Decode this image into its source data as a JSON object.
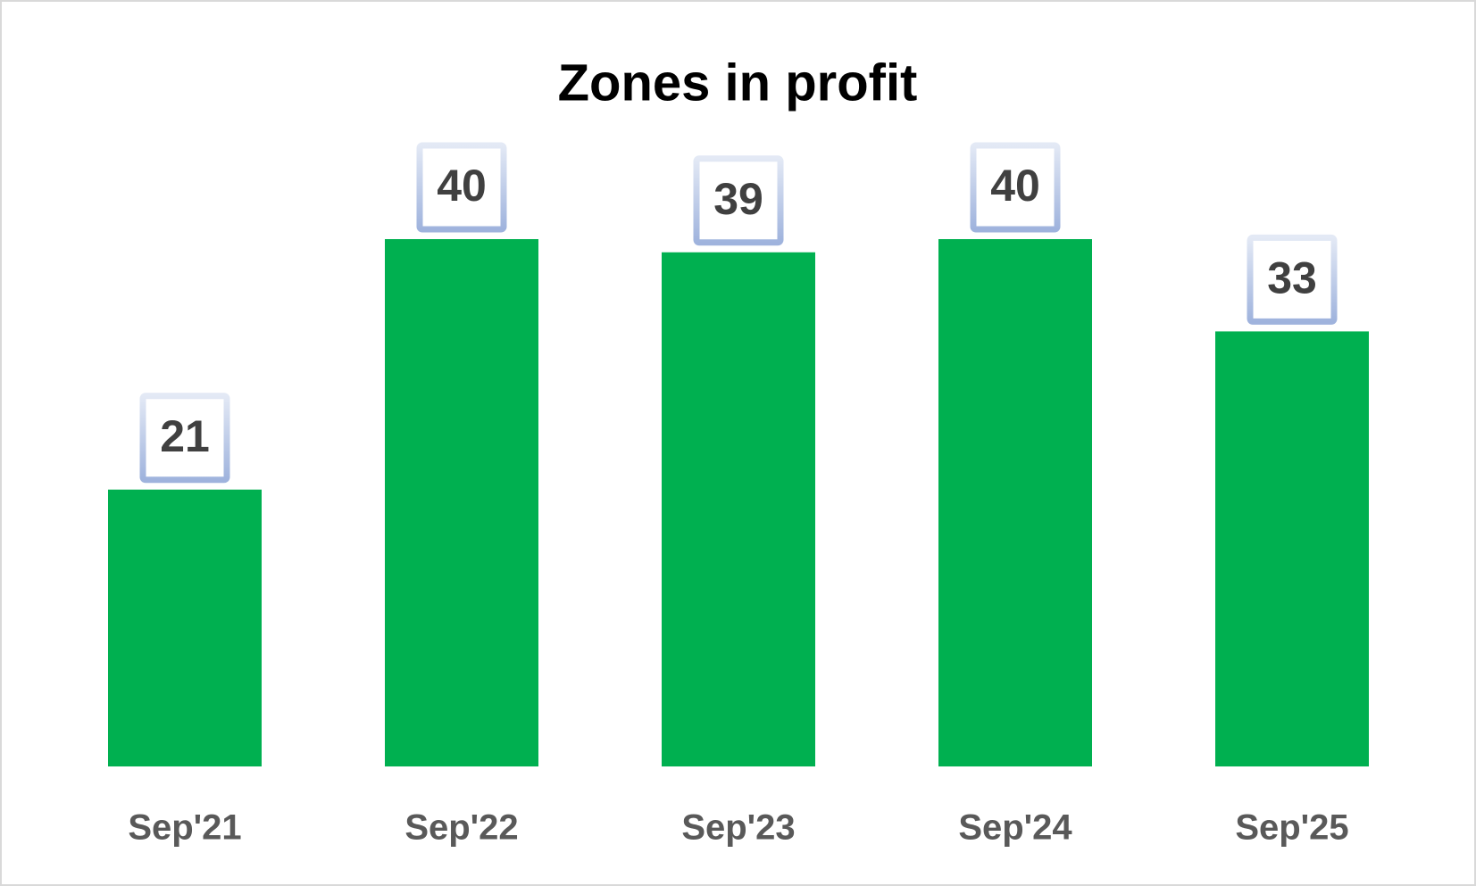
{
  "chart_data": {
    "type": "bar",
    "title": "Zones in profit",
    "categories": [
      "Sep'21",
      "Sep'22",
      "Sep'23",
      "Sep'24",
      "Sep'25"
    ],
    "values": [
      21,
      40,
      39,
      40,
      33
    ],
    "color": "#00b050",
    "ylim": [
      0,
      40
    ],
    "grid": false
  }
}
